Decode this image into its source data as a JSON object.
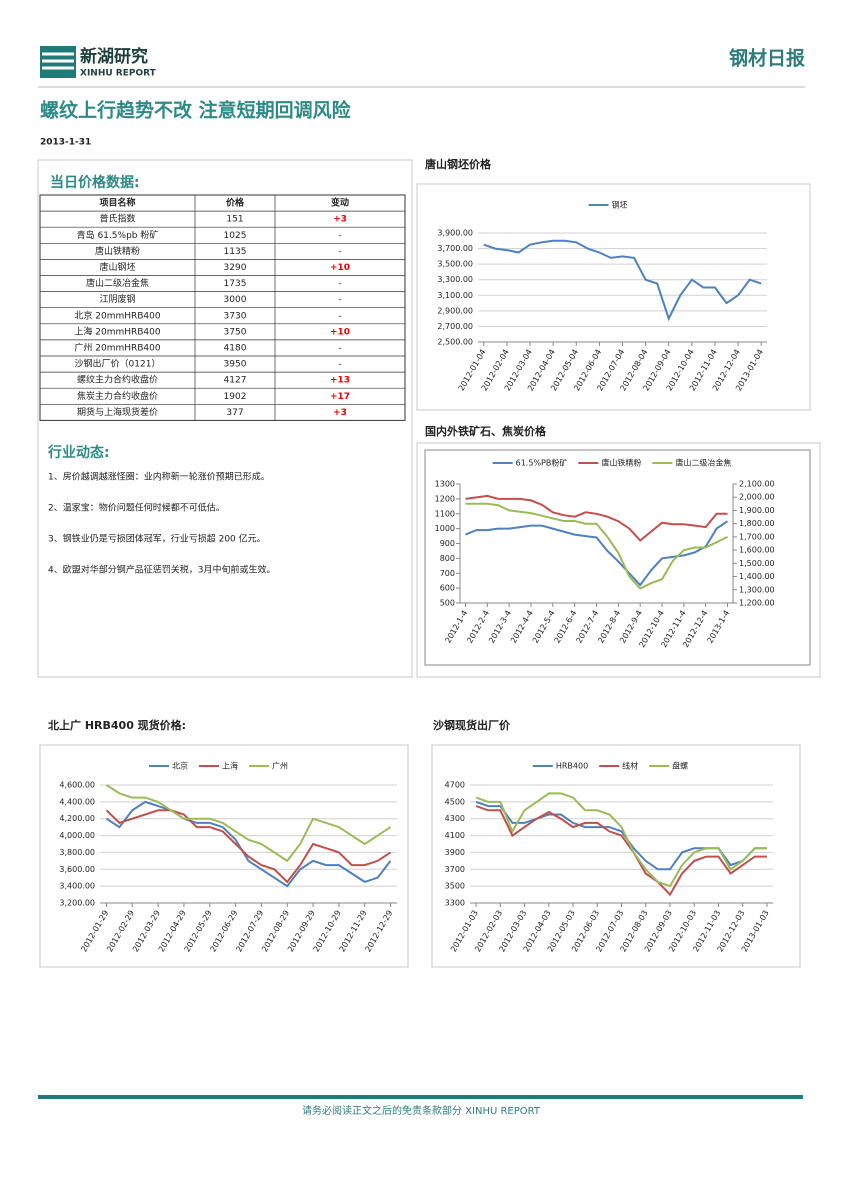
{
  "header": {
    "logo_cn": "新湖研究",
    "logo_en": "XINHU REPORT",
    "report": "钢材日报"
  },
  "title": "螺纹上行趋势不改 注意短期回调风险",
  "date": "2013-1-31",
  "price_section": "当日价格数据:",
  "table": {
    "columns": [
      "项目名称",
      "价格",
      "变动"
    ],
    "rows": [
      [
        "普氏指数",
        "151",
        "+3"
      ],
      [
        "青岛 61.5%pb 粉矿",
        "1025",
        "-"
      ],
      [
        "唐山铁精粉",
        "1135",
        "-"
      ],
      [
        "唐山钢坯",
        "3290",
        "+10"
      ],
      [
        "唐山二级冶金焦",
        "1735",
        "-"
      ],
      [
        "江阴废钢",
        "3000",
        "-"
      ],
      [
        "北京 20mmHRB400",
        "3730",
        "-"
      ],
      [
        "上海 20mmHRB400",
        "3750",
        "+10"
      ],
      [
        "广州 20mmHRB400",
        "4180",
        "-"
      ],
      [
        "沙钢出厂价（0121）",
        "3950",
        "-"
      ],
      [
        "螺纹主力合约收盘价",
        "4127",
        "+13"
      ],
      [
        "焦炭主力合约收盘价",
        "1902",
        "+17"
      ],
      [
        "期货与上海现货差价",
        "377",
        "+3"
      ]
    ]
  },
  "news_section": "行业动态:",
  "news": [
    "1、房价越调越涨怪圈：业内称新一轮涨价预期已形成。",
    "2、温家宝：物价问题任何时候都不可低估。",
    "3、钢铁业仍是亏损团体冠军，行业亏损超 200 亿元。",
    "4、欧盟对华部分钢产品征惩罚关税，3月中旬前或生效。"
  ],
  "footer": "请务必阅读正文之后的免责条款部分 XINHU REPORT",
  "chart_data": [
    {
      "type": "line",
      "title": "唐山钢坯价格",
      "categories": [
        "2012-01-04",
        null,
        "2012-02-04",
        null,
        "2012-03-04",
        null,
        "2012-04-04",
        null,
        "2012-05-04",
        null,
        "2012-06-04",
        null,
        "2012-07-04",
        null,
        "2012-08-04",
        null,
        "2012-09-04",
        null,
        "2012-10-04",
        null,
        "2012-11-04",
        null,
        "2012-12-04",
        null,
        "2013-01-04"
      ],
      "series": [
        {
          "name": "钢坯",
          "color": "#4f81bd",
          "values": [
            3750,
            3700,
            3680,
            3650,
            3750,
            3780,
            3800,
            3800,
            3780,
            3700,
            3650,
            3580,
            3600,
            3580,
            3300,
            3250,
            2800,
            3100,
            3300,
            3200,
            3200,
            3000,
            3100,
            3300,
            3250
          ]
        }
      ],
      "ylim": [
        2500,
        3900
      ],
      "yticks": [
        {
          "value": 2500,
          "label": "2,500.00"
        },
        {
          "value": 2700,
          "label": "2,700.00"
        },
        {
          "value": 2900,
          "label": "2,900.00"
        },
        {
          "value": 3100,
          "label": "3,100.00"
        },
        {
          "value": 3300,
          "label": "3,300.00"
        },
        {
          "value": 3500,
          "label": "3,500.00"
        },
        {
          "value": 3700,
          "label": "3,700.00"
        },
        {
          "value": 3900,
          "label": "3,900.00"
        }
      ],
      "grid": true
    },
    {
      "type": "line",
      "title": "国内外铁矿石、焦炭价格",
      "categories": [
        "2012-1-4",
        null,
        "2012-2-4",
        null,
        "2012-3-4",
        null,
        "2012-4-4",
        null,
        "2012-5-4",
        null,
        "2012-6-4",
        null,
        "2012-7-4",
        null,
        "2012-8-4",
        null,
        "2012-9-4",
        null,
        "2012-10-4",
        null,
        "2012-11-4",
        null,
        "2012-12-4",
        null,
        "2013-1-4"
      ],
      "series": [
        {
          "name": "61.5%PB粉矿",
          "color": "#4f81bd",
          "values": [
            960,
            990,
            990,
            1000,
            1000,
            1010,
            1020,
            1020,
            1000,
            980,
            960,
            950,
            940,
            850,
            780,
            700,
            620,
            720,
            800,
            810,
            820,
            840,
            880,
            1000,
            1050
          ]
        },
        {
          "name": "唐山铁精粉",
          "color": "#c0504d",
          "values": [
            1200,
            1210,
            1220,
            1200,
            1200,
            1200,
            1190,
            1160,
            1110,
            1090,
            1080,
            1110,
            1100,
            1080,
            1050,
            1000,
            920,
            980,
            1040,
            1030,
            1030,
            1020,
            1010,
            1100,
            1100
          ]
        },
        {
          "name": "唐山二级冶金焦",
          "color": "#9bbb59",
          "axis": "y2",
          "values": [
            1950,
            1950,
            1950,
            1940,
            1900,
            1890,
            1880,
            1860,
            1840,
            1820,
            1820,
            1800,
            1800,
            1700,
            1580,
            1400,
            1310,
            1350,
            1380,
            1520,
            1600,
            1620,
            1620,
            1660,
            1700
          ]
        }
      ],
      "ylim": [
        500,
        1300
      ],
      "yticks": [
        500,
        600,
        700,
        800,
        900,
        1000,
        1100,
        1200,
        1300
      ],
      "y2lim": [
        1200,
        2100
      ],
      "y2ticks": [
        {
          "value": 1200,
          "label": "1,200.00"
        },
        {
          "value": 1300,
          "label": "1,300.00"
        },
        {
          "value": 1400,
          "label": "1,400.00"
        },
        {
          "value": 1500,
          "label": "1,500.00"
        },
        {
          "value": 1600,
          "label": "1,600.00"
        },
        {
          "value": 1700,
          "label": "1,700.00"
        },
        {
          "value": 1800,
          "label": "1,800.00"
        },
        {
          "value": 1900,
          "label": "1,900.00"
        },
        {
          "value": 2000,
          "label": "2,000.00"
        },
        {
          "value": 2100,
          "label": "2,100.00"
        }
      ],
      "grid": false
    },
    {
      "type": "line",
      "title": "北上广 HRB400 现货价格:",
      "categories": [
        "2012-01-29",
        null,
        "2012-02-29",
        null,
        "2012-03-29",
        null,
        "2012-04-29",
        null,
        "2012-05-29",
        null,
        "2012-06-29",
        null,
        "2012-07-29",
        null,
        "2012-08-29",
        null,
        "2012-09-29",
        null,
        "2012-10-29",
        null,
        "2012-11-29",
        null,
        "2012-12-29"
      ],
      "series": [
        {
          "name": "北京",
          "color": "#4f81bd",
          "values": [
            4200,
            4100,
            4300,
            4400,
            4350,
            4300,
            4200,
            4150,
            4150,
            4100,
            3950,
            3700,
            3600,
            3500,
            3400,
            3600,
            3700,
            3650,
            3650,
            3550,
            3450,
            3500,
            3700
          ]
        },
        {
          "name": "上海",
          "color": "#c0504d",
          "values": [
            4300,
            4150,
            4200,
            4250,
            4300,
            4300,
            4250,
            4100,
            4100,
            4050,
            3900,
            3750,
            3650,
            3600,
            3450,
            3650,
            3900,
            3850,
            3800,
            3650,
            3650,
            3700,
            3800
          ]
        },
        {
          "name": "广州",
          "color": "#9bbb59",
          "values": [
            4600,
            4500,
            4450,
            4450,
            4400,
            4300,
            4200,
            4200,
            4200,
            4150,
            4050,
            3950,
            3900,
            3800,
            3700,
            3900,
            4200,
            4150,
            4100,
            4000,
            3900,
            4000,
            4100
          ]
        }
      ],
      "ylim": [
        3200,
        4600
      ],
      "yticks": [
        {
          "value": 3200,
          "label": "3,200.00"
        },
        {
          "value": 3400,
          "label": "3,400.00"
        },
        {
          "value": 3600,
          "label": "3,600.00"
        },
        {
          "value": 3800,
          "label": "3,800.00"
        },
        {
          "value": 4000,
          "label": "4,000.00"
        },
        {
          "value": 4200,
          "label": "4,200.00"
        },
        {
          "value": 4400,
          "label": "4,400.00"
        },
        {
          "value": 4600,
          "label": "4,600.00"
        }
      ],
      "grid": true
    },
    {
      "type": "line",
      "title": "沙钢现货出厂价",
      "categories": [
        "2012-01-03",
        null,
        "2012-02-03",
        null,
        "2012-03-03",
        null,
        "2012-04-03",
        null,
        "2012-05-03",
        null,
        "2012-06-03",
        null,
        "2012-07-03",
        null,
        "2012-08-03",
        null,
        "2012-09-03",
        null,
        "2012-10-03",
        null,
        "2012-11-03",
        null,
        "2012-12-03",
        null,
        "2013-01-03"
      ],
      "series": [
        {
          "name": "HRB400",
          "color": "#4f81bd",
          "values": [
            4500,
            4450,
            4450,
            4250,
            4250,
            4300,
            4350,
            4350,
            4250,
            4200,
            4200,
            4200,
            4150,
            3950,
            3800,
            3700,
            3700,
            3900,
            3950,
            3950,
            3950,
            3750,
            3800,
            3950,
            3950
          ]
        },
        {
          "name": "线材",
          "color": "#c0504d",
          "values": [
            4450,
            4400,
            4400,
            4100,
            4200,
            4300,
            4380,
            4300,
            4200,
            4250,
            4250,
            4150,
            4100,
            3900,
            3650,
            3550,
            3400,
            3650,
            3800,
            3850,
            3850,
            3650,
            3750,
            3850,
            3850
          ]
        },
        {
          "name": "盘螺",
          "color": "#9bbb59",
          "values": [
            4550,
            4500,
            4500,
            4150,
            4400,
            4500,
            4600,
            4600,
            4550,
            4400,
            4400,
            4350,
            4200,
            3900,
            3700,
            3550,
            3500,
            3750,
            3900,
            3950,
            3950,
            3700,
            3800,
            3950,
            3950
          ]
        }
      ],
      "ylim": [
        3300,
        4700
      ],
      "yticks": [
        3300,
        3500,
        3700,
        3900,
        4100,
        4300,
        4500,
        4700
      ],
      "grid": true
    }
  ]
}
